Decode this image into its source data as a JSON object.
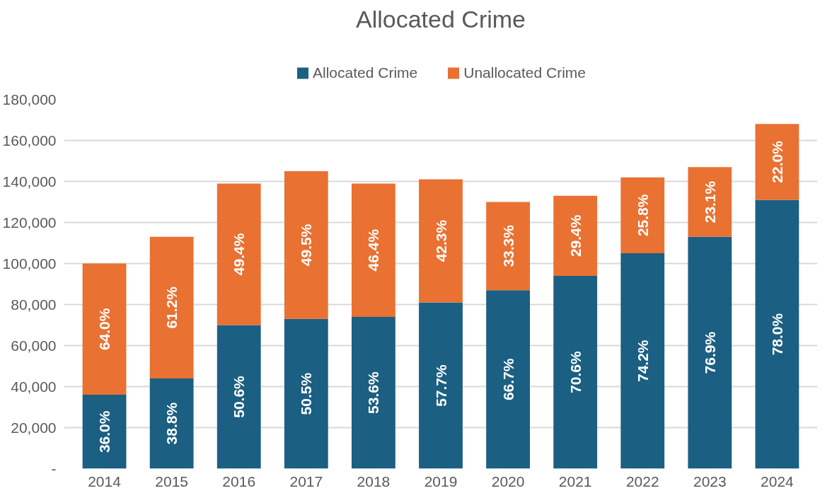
{
  "chart_data": {
    "type": "bar",
    "title": "Allocated Crime",
    "stacked": true,
    "categories": [
      "2014",
      "2015",
      "2016",
      "2017",
      "2018",
      "2019",
      "2020",
      "2021",
      "2022",
      "2023",
      "2024"
    ],
    "series": [
      {
        "name": "Allocated Crime",
        "color": "#1b5f82",
        "values": [
          36000,
          44000,
          70000,
          73000,
          74000,
          81000,
          87000,
          94000,
          105000,
          113000,
          131000
        ]
      },
      {
        "name": "Unallocated Crime",
        "color": "#e97132",
        "values": [
          64000,
          69000,
          69000,
          72000,
          65000,
          60000,
          43000,
          39000,
          37000,
          34000,
          37000
        ]
      }
    ],
    "annotations": [
      "36.0%",
      "38.8%",
      "50.6%",
      "50.5%",
      "53.6%",
      "57.7%",
      "66.7%",
      "70.6%",
      "74.2%",
      "76.9%",
      "78.0%",
      "64.0%",
      "61.2%",
      "49.4%",
      "49.5%",
      "46.4%",
      "42.3%",
      "33.3%",
      "29.4%",
      "25.8%",
      "23.1%",
      "22.0%"
    ],
    "ylim": [
      0,
      180000
    ],
    "yticks": [
      {
        "value": 0,
        "label": "-"
      },
      {
        "value": 20000,
        "label": "20,000"
      },
      {
        "value": 40000,
        "label": "40,000"
      },
      {
        "value": 60000,
        "label": "60,000"
      },
      {
        "value": 80000,
        "label": "80,000"
      },
      {
        "value": 100000,
        "label": "100,000"
      },
      {
        "value": 120000,
        "label": "120,000"
      },
      {
        "value": 140000,
        "label": "140,000"
      },
      {
        "value": 160000,
        "label": "160,000"
      },
      {
        "value": 180000,
        "label": "180,000"
      }
    ],
    "grid": "y",
    "legend": "top"
  }
}
